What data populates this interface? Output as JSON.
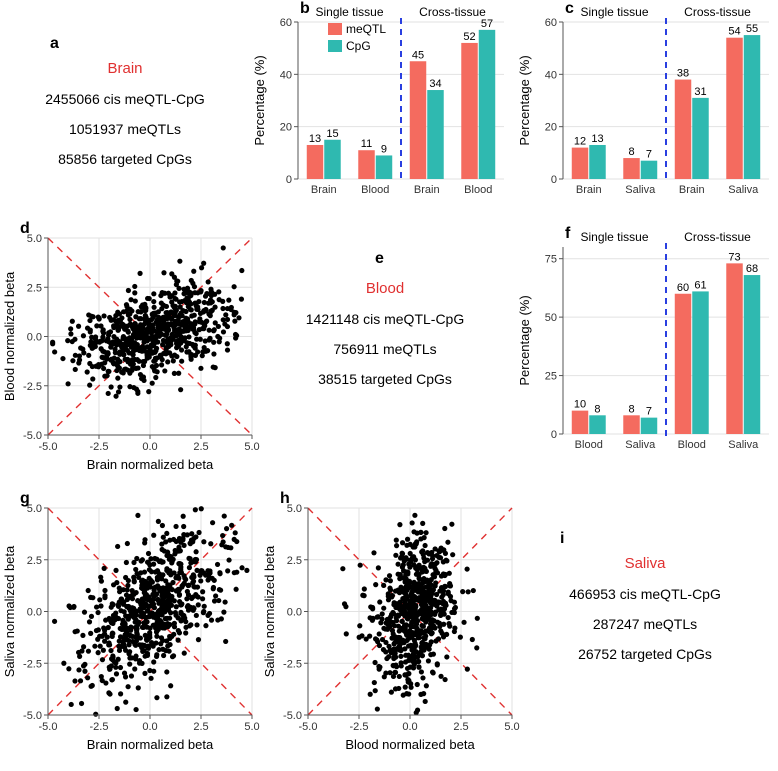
{
  "colors": {
    "meqtl": "#f46b5f",
    "cpg": "#2fb9b0",
    "divider": "#2a3fe0",
    "axis": "#555555",
    "grid": "#e2e2e2",
    "tick": "#333333",
    "scatter": "#000000",
    "diag": "#e03030",
    "panel_bg": "#ffffff",
    "title_red": "#e03030"
  },
  "panel_label_fontsize": 16,
  "stat_fontsize": 14,
  "tissue_title_fontsize": 15,
  "panel_a": {
    "label": "a",
    "title": "Brain",
    "lines": [
      "2455066 cis meQTL-CpG",
      "1051937 meQTLs",
      "85856 targeted CpGs"
    ]
  },
  "panel_b": {
    "label": "b",
    "type": "bar",
    "ylabel": "Percentage (%)",
    "ylim": [
      0,
      60
    ],
    "ytick_step": 20,
    "section_left": "Single tissue",
    "section_right": "Cross-tissue",
    "legend": [
      {
        "key": "meQTL",
        "color_key": "meqtl"
      },
      {
        "key": "CpG",
        "color_key": "cpg"
      }
    ],
    "groups": [
      {
        "name": "Brain",
        "vals": [
          13,
          15
        ]
      },
      {
        "name": "Blood",
        "vals": [
          11,
          9
        ]
      },
      {
        "name": "Brain",
        "vals": [
          45,
          34
        ]
      },
      {
        "name": "Blood",
        "vals": [
          52,
          57
        ]
      }
    ],
    "divider_after_group": 2
  },
  "panel_c": {
    "label": "c",
    "type": "bar",
    "ylabel": "Percentage (%)",
    "ylim": [
      0,
      60
    ],
    "ytick_step": 20,
    "section_left": "Single tissue",
    "section_right": "Cross-tissue",
    "groups": [
      {
        "name": "Brain",
        "vals": [
          12,
          13
        ]
      },
      {
        "name": "Saliva",
        "vals": [
          8,
          7
        ]
      },
      {
        "name": "Brain",
        "vals": [
          38,
          31
        ]
      },
      {
        "name": "Saliva",
        "vals": [
          54,
          55
        ]
      }
    ],
    "divider_after_group": 2
  },
  "panel_d": {
    "label": "d",
    "type": "scatter",
    "xlabel": "Brain normalized beta",
    "ylabel": "Blood normalized beta",
    "xlim": [
      -5,
      5
    ],
    "ylim": [
      -5,
      5
    ],
    "xticks": [
      -5.0,
      -2.5,
      0.0,
      2.5,
      5.0
    ],
    "yticks": [
      -5.0,
      -2.5,
      0.0,
      2.5,
      5.0
    ],
    "cloud": {
      "n": 700,
      "x_center": 0.3,
      "y_center": 0.2,
      "x_spread": 1.8,
      "y_spread": 1.2,
      "corr": 0.45,
      "wing": 4.2
    }
  },
  "panel_e": {
    "label": "e",
    "title": "Blood",
    "lines": [
      "1421148 cis meQTL-CpG",
      "756911 meQTLs",
      "38515 targeted CpGs"
    ]
  },
  "panel_f": {
    "label": "f",
    "type": "bar",
    "ylabel": "Percentage (%)",
    "ylim": [
      0,
      80
    ],
    "ytick_step": 25,
    "yticks": [
      0,
      25,
      50,
      75
    ],
    "section_left": "Single tissue",
    "section_right": "Cross-tissue",
    "groups": [
      {
        "name": "Blood",
        "vals": [
          10,
          8
        ]
      },
      {
        "name": "Saliva",
        "vals": [
          8,
          7
        ]
      },
      {
        "name": "Blood",
        "vals": [
          60,
          61
        ]
      },
      {
        "name": "Saliva",
        "vals": [
          73,
          68
        ]
      }
    ],
    "divider_after_group": 2
  },
  "panel_g": {
    "label": "g",
    "type": "scatter",
    "xlabel": "Brain normalized beta",
    "ylabel": "Saliva normalized beta",
    "xlim": [
      -5,
      5
    ],
    "ylim": [
      -5,
      5
    ],
    "xticks": [
      -5.0,
      -2.5,
      0.0,
      2.5,
      5.0
    ],
    "yticks": [
      -5.0,
      -2.5,
      0.0,
      2.5,
      5.0
    ],
    "cloud": {
      "n": 700,
      "x_center": 0.1,
      "y_center": 0.2,
      "x_spread": 1.6,
      "y_spread": 1.8,
      "corr": 0.55,
      "wing": 4.0
    }
  },
  "panel_h": {
    "label": "h",
    "type": "scatter",
    "xlabel": "Blood normalized beta",
    "ylabel": "Saliva normalized beta",
    "xlim": [
      -5,
      5
    ],
    "ylim": [
      -5,
      5
    ],
    "xticks": [
      -5.0,
      -2.5,
      0.0,
      2.5,
      5.0
    ],
    "yticks": [
      -5.0,
      -2.5,
      0.0,
      2.5,
      5.0
    ],
    "cloud": {
      "n": 700,
      "x_center": 0.3,
      "y_center": 0.1,
      "x_spread": 0.9,
      "y_spread": 1.9,
      "corr": 0.35,
      "wing": 3.4
    }
  },
  "panel_i": {
    "label": "i",
    "title": "Saliva",
    "lines": [
      "466953 cis meQTL-CpG",
      "287247 meQTLs",
      "26752 targeted CpGs"
    ]
  }
}
